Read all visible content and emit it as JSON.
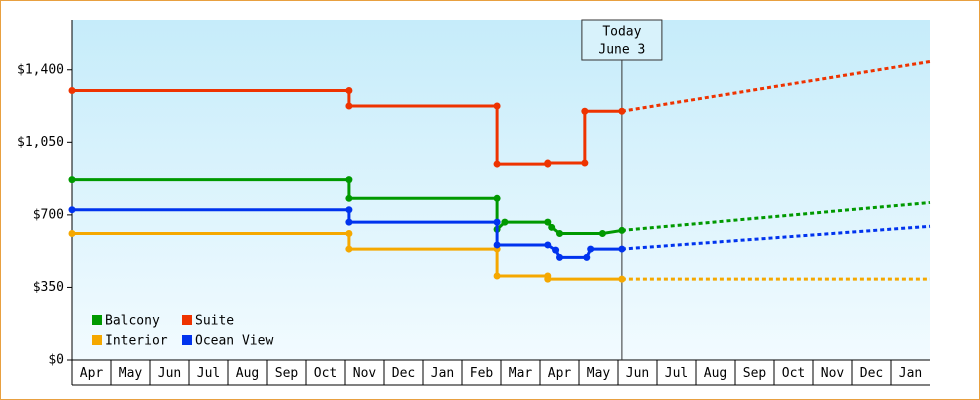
{
  "chart_data": {
    "type": "line",
    "xlim": [
      0,
      22
    ],
    "xticks": [
      {
        "value": 0,
        "label": "Apr"
      },
      {
        "value": 1,
        "label": "May"
      },
      {
        "value": 2,
        "label": "Jun"
      },
      {
        "value": 3,
        "label": "Jul"
      },
      {
        "value": 4,
        "label": "Aug"
      },
      {
        "value": 5,
        "label": "Sep"
      },
      {
        "value": 6,
        "label": "Oct"
      },
      {
        "value": 7,
        "label": "Nov"
      },
      {
        "value": 8,
        "label": "Dec"
      },
      {
        "value": 9,
        "label": "Jan"
      },
      {
        "value": 10,
        "label": "Feb"
      },
      {
        "value": 11,
        "label": "Mar"
      },
      {
        "value": 12,
        "label": "Apr"
      },
      {
        "value": 13,
        "label": "May"
      },
      {
        "value": 14,
        "label": "Jun"
      },
      {
        "value": 15,
        "label": "Jul"
      },
      {
        "value": 16,
        "label": "Aug"
      },
      {
        "value": 17,
        "label": "Sep"
      },
      {
        "value": 18,
        "label": "Oct"
      },
      {
        "value": 19,
        "label": "Nov"
      },
      {
        "value": 20,
        "label": "Dec"
      },
      {
        "value": 21,
        "label": "Jan"
      }
    ],
    "ylim": [
      0,
      1640
    ],
    "yticks": [
      {
        "value": 0,
        "label": "$0"
      },
      {
        "value": 350,
        "label": "$350"
      },
      {
        "value": 700,
        "label": "$700"
      },
      {
        "value": 1050,
        "label": "$1,050"
      },
      {
        "value": 1400,
        "label": "$1,400"
      }
    ],
    "annotation": {
      "x": 14.1,
      "lines": [
        "Today",
        "June 3"
      ]
    },
    "legend": "lower left",
    "series": [
      {
        "name": "Balcony",
        "color": "#009900",
        "x": [
          0,
          7.1,
          7.1,
          10.9,
          10.9,
          11.1,
          12.2,
          12.3,
          12.5,
          13.6,
          14.1
        ],
        "values": [
          870,
          870,
          780,
          780,
          630,
          665,
          665,
          640,
          610,
          610,
          625
        ],
        "forecast_x": [
          14.1,
          22
        ],
        "forecast_values": [
          625,
          760
        ]
      },
      {
        "name": "Suite",
        "color": "#ee3300",
        "x": [
          0,
          7.1,
          7.1,
          10.9,
          10.9,
          12.2,
          12.2,
          13.15,
          13.15,
          14.1
        ],
        "values": [
          1300,
          1300,
          1225,
          1225,
          945,
          945,
          950,
          950,
          1200,
          1200
        ],
        "forecast_x": [
          14.1,
          22
        ],
        "forecast_values": [
          1200,
          1440
        ]
      },
      {
        "name": "Interior",
        "color": "#f5a800",
        "x": [
          0,
          7.1,
          7.1,
          10.9,
          10.9,
          12.2,
          12.2,
          14.1
        ],
        "values": [
          610,
          610,
          535,
          535,
          405,
          405,
          390,
          390
        ],
        "forecast_x": [
          14.1,
          22
        ],
        "forecast_values": [
          390,
          390
        ]
      },
      {
        "name": "Ocean View",
        "color": "#0033ee",
        "x": [
          0,
          7.1,
          7.1,
          10.9,
          10.9,
          12.2,
          12.4,
          12.5,
          13.2,
          13.3,
          14.1
        ],
        "values": [
          725,
          725,
          665,
          665,
          555,
          555,
          530,
          495,
          495,
          535,
          535
        ],
        "forecast_x": [
          14.1,
          22
        ],
        "forecast_values": [
          535,
          645
        ]
      }
    ]
  }
}
